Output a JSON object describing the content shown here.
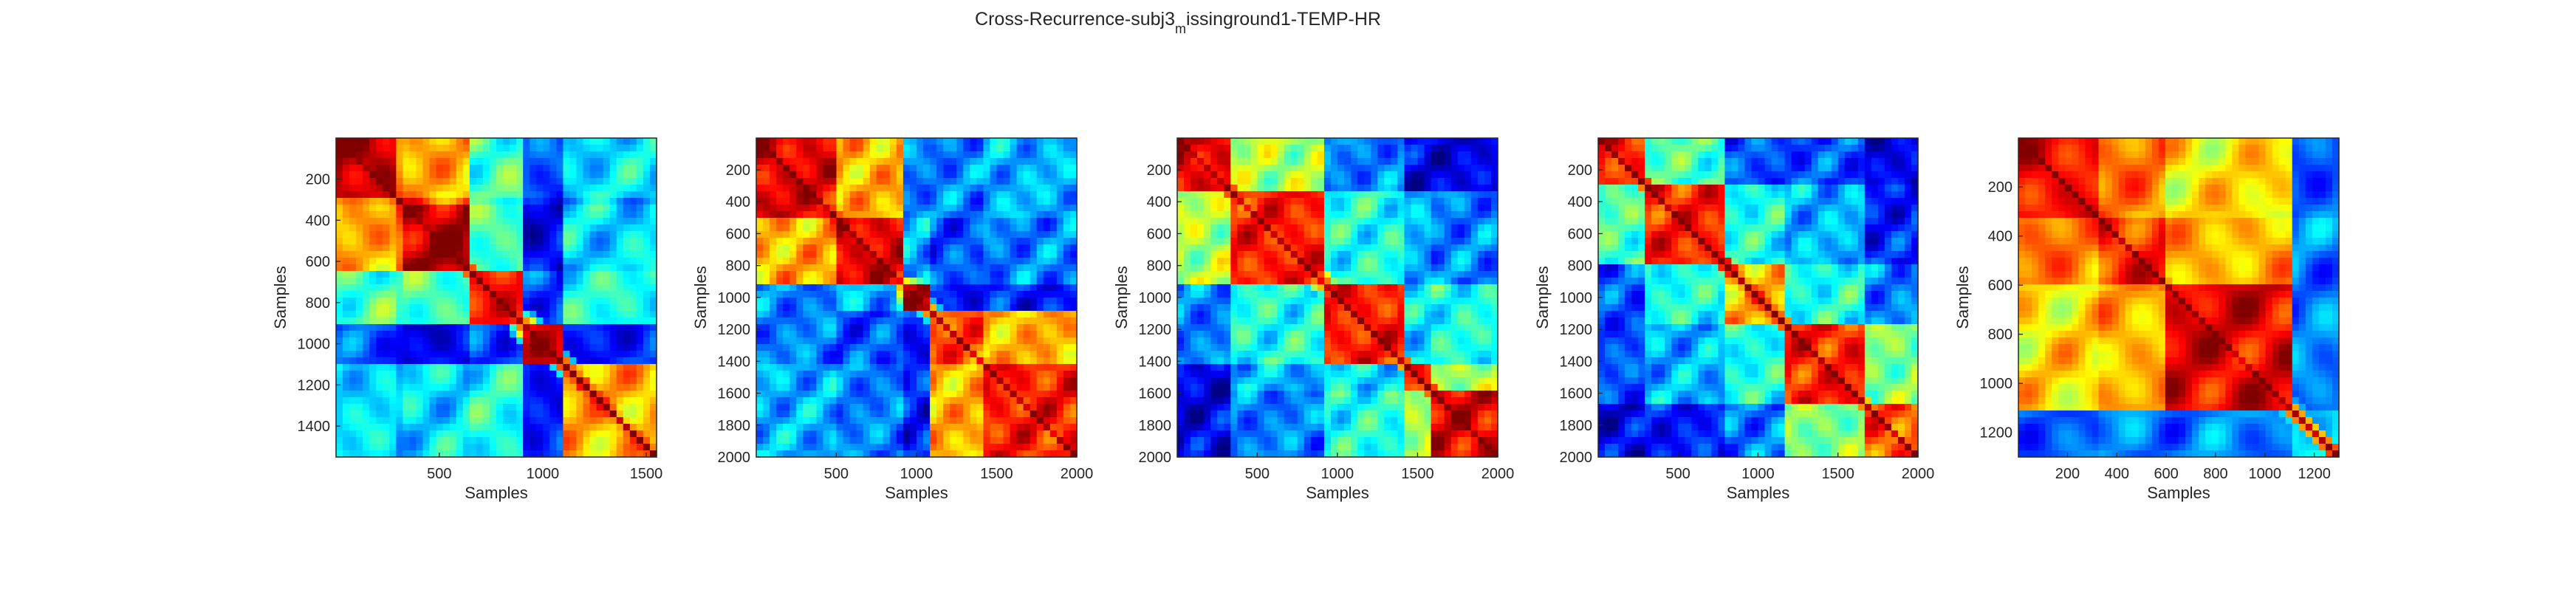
{
  "figure": {
    "title_main": "Cross-Recurrence-subj3",
    "title_sub": "m",
    "title_rest": "issinground1-TEMP-HR"
  },
  "colormap": "jet",
  "chart_data": [
    {
      "type": "heatmap",
      "xlabel": "Samples",
      "ylabel": "Samples",
      "n": 1550,
      "xlim": [
        1,
        1550
      ],
      "ylim": [
        1,
        1550
      ],
      "y_reversed": true,
      "xticks": [
        500,
        1000,
        1500
      ],
      "yticks": [
        200,
        400,
        600,
        800,
        1000,
        1200,
        1400
      ],
      "segments": [
        [
          1,
          280
        ],
        [
          280,
          330
        ],
        [
          330,
          640
        ],
        [
          640,
          900
        ],
        [
          900,
          1100
        ],
        [
          1100,
          1550
        ]
      ],
      "blocks": [
        [
          0.95,
          0.75,
          0.7,
          0.45,
          0.2,
          0.35
        ],
        [
          0.75,
          0.95,
          0.8,
          0.4,
          0.15,
          0.3
        ],
        [
          0.7,
          0.8,
          0.95,
          0.45,
          0.1,
          0.35
        ],
        [
          0.45,
          0.4,
          0.45,
          0.85,
          0.2,
          0.4
        ],
        [
          0.2,
          0.15,
          0.1,
          0.2,
          0.9,
          0.15
        ],
        [
          0.35,
          0.3,
          0.35,
          0.4,
          0.15,
          0.7
        ]
      ],
      "bright_points": [
        [
          920,
          920
        ],
        [
          700,
          700
        ],
        [
          1200,
          1200
        ]
      ],
      "grid": false
    },
    {
      "type": "heatmap",
      "xlabel": "Samples",
      "ylabel": "Samples",
      "n": 2000,
      "xlim": [
        1,
        2000
      ],
      "ylim": [
        1,
        2000
      ],
      "y_reversed": true,
      "xticks": [
        500,
        1000,
        1500,
        2000
      ],
      "yticks": [
        200,
        400,
        600,
        800,
        1000,
        1200,
        1400,
        1600,
        1800,
        2000
      ],
      "segments": [
        [
          1,
          480
        ],
        [
          480,
          920
        ],
        [
          920,
          1100
        ],
        [
          1100,
          1400
        ],
        [
          1400,
          2000
        ]
      ],
      "blocks": [
        [
          0.9,
          0.7,
          0.25,
          0.25,
          0.3
        ],
        [
          0.7,
          0.9,
          0.3,
          0.2,
          0.25
        ],
        [
          0.25,
          0.3,
          0.95,
          0.15,
          0.15
        ],
        [
          0.25,
          0.2,
          0.15,
          0.8,
          0.7
        ],
        [
          0.3,
          0.25,
          0.15,
          0.7,
          0.85
        ]
      ],
      "bright_points": [
        [
          960,
          960
        ],
        [
          400,
          400
        ]
      ],
      "grid": false
    },
    {
      "type": "heatmap",
      "xlabel": "Samples",
      "ylabel": "Samples",
      "n": 2000,
      "xlim": [
        1,
        2000
      ],
      "ylim": [
        1,
        2000
      ],
      "y_reversed": true,
      "xticks": [
        500,
        1000,
        1500,
        2000
      ],
      "yticks": [
        200,
        400,
        600,
        800,
        1000,
        1200,
        1400,
        1600,
        1800,
        2000
      ],
      "segments": [
        [
          1,
          330
        ],
        [
          330,
          900
        ],
        [
          900,
          1400
        ],
        [
          1400,
          1600
        ],
        [
          1600,
          2000
        ]
      ],
      "blocks": [
        [
          0.9,
          0.55,
          0.25,
          0.1,
          0.1
        ],
        [
          0.55,
          0.85,
          0.4,
          0.3,
          0.25
        ],
        [
          0.25,
          0.4,
          0.85,
          0.35,
          0.4
        ],
        [
          0.1,
          0.3,
          0.35,
          0.8,
          0.55
        ],
        [
          0.1,
          0.25,
          0.4,
          0.55,
          0.9
        ]
      ],
      "bright_points": [
        [
          100,
          100
        ],
        [
          200,
          200
        ],
        [
          900,
          900
        ],
        [
          1650,
          1650
        ]
      ],
      "grid": false
    },
    {
      "type": "heatmap",
      "xlabel": "Samples",
      "ylabel": "Samples",
      "n": 2000,
      "xlim": [
        1,
        2000
      ],
      "ylim": [
        1,
        2000
      ],
      "y_reversed": true,
      "xticks": [
        500,
        1000,
        1500,
        2000
      ],
      "yticks": [
        200,
        400,
        600,
        800,
        1000,
        1200,
        1400,
        1600,
        1800,
        2000
      ],
      "segments": [
        [
          1,
          300
        ],
        [
          300,
          800
        ],
        [
          800,
          1150
        ],
        [
          1150,
          1650
        ],
        [
          1650,
          2000
        ]
      ],
      "blocks": [
        [
          0.85,
          0.45,
          0.2,
          0.2,
          0.1
        ],
        [
          0.45,
          0.85,
          0.4,
          0.3,
          0.15
        ],
        [
          0.2,
          0.4,
          0.7,
          0.4,
          0.25
        ],
        [
          0.2,
          0.3,
          0.4,
          0.85,
          0.5
        ],
        [
          0.1,
          0.15,
          0.25,
          0.5,
          0.8
        ]
      ],
      "bright_points": [
        [
          1300,
          1300
        ]
      ],
      "grid": false
    },
    {
      "type": "heatmap",
      "xlabel": "Samples",
      "ylabel": "Samples",
      "n": 1300,
      "xlim": [
        1,
        1300
      ],
      "ylim": [
        1,
        1300
      ],
      "y_reversed": true,
      "xticks": [
        200,
        400,
        600,
        800,
        1000,
        1200
      ],
      "yticks": [
        200,
        400,
        600,
        800,
        1000,
        1200
      ],
      "segments": [
        [
          1,
          320
        ],
        [
          320,
          600
        ],
        [
          600,
          1100
        ],
        [
          1100,
          1300
        ]
      ],
      "blocks": [
        [
          0.88,
          0.75,
          0.65,
          0.22
        ],
        [
          0.75,
          0.85,
          0.7,
          0.25
        ],
        [
          0.65,
          0.7,
          0.9,
          0.25
        ],
        [
          0.22,
          0.25,
          0.25,
          0.35
        ]
      ],
      "bright_points": [
        [
          900,
          900
        ]
      ],
      "grid": false
    }
  ]
}
